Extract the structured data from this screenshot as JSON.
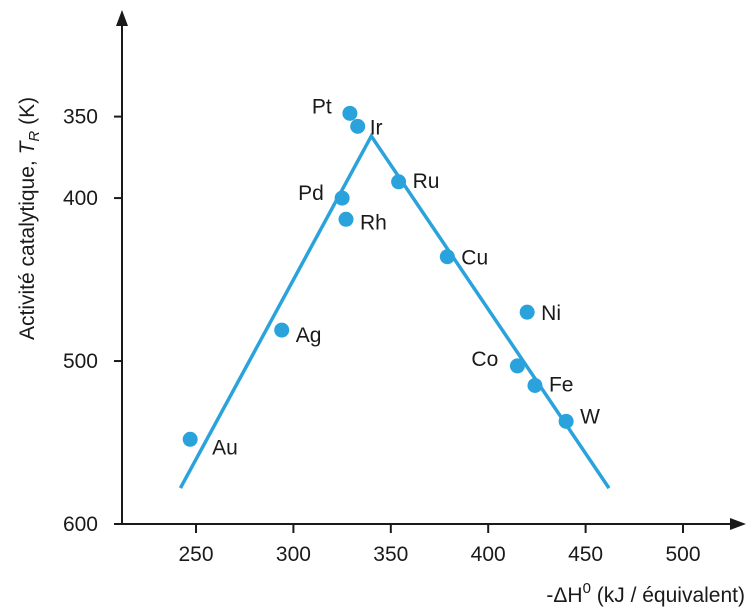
{
  "chart_data": {
    "type": "scatter",
    "xlabel_prefix": "-ΔH",
    "xlabel_sup": "0",
    "xlabel_suffix": " (kJ / équivalent)",
    "ylabel_prefix": "Activité catalytique, ",
    "ylabel_var": "T",
    "ylabel_sub": "R",
    "ylabel_suffix": " (K)",
    "xlim": [
      212,
      500
    ],
    "ylim": [
      600,
      330
    ],
    "y_inverted": true,
    "x_ticks": [
      250,
      300,
      350,
      400,
      450,
      500
    ],
    "y_ticks": [
      350,
      400,
      500,
      600
    ],
    "grid": false,
    "colors": {
      "points": "#2aa3dc",
      "line": "#2aa3dc",
      "axis": "#1a1a1a"
    },
    "points": [
      {
        "label": "Pt",
        "x": 329,
        "y": 348
      },
      {
        "label": "Ir",
        "x": 333,
        "y": 356
      },
      {
        "label": "Ru",
        "x": 354,
        "y": 390
      },
      {
        "label": "Pd",
        "x": 325,
        "y": 400
      },
      {
        "label": "Rh",
        "x": 327,
        "y": 413
      },
      {
        "label": "Cu",
        "x": 379,
        "y": 436
      },
      {
        "label": "Ni",
        "x": 420,
        "y": 470
      },
      {
        "label": "Ag",
        "x": 294,
        "y": 481
      },
      {
        "label": "Co",
        "x": 415,
        "y": 503
      },
      {
        "label": "Fe",
        "x": 424,
        "y": 515
      },
      {
        "label": "W",
        "x": 440,
        "y": 537
      },
      {
        "label": "Au",
        "x": 247,
        "y": 548
      }
    ],
    "trend_line": [
      {
        "x": 242,
        "y": 578
      },
      {
        "x": 340,
        "y": 362
      },
      {
        "x": 462,
        "y": 578
      }
    ]
  }
}
